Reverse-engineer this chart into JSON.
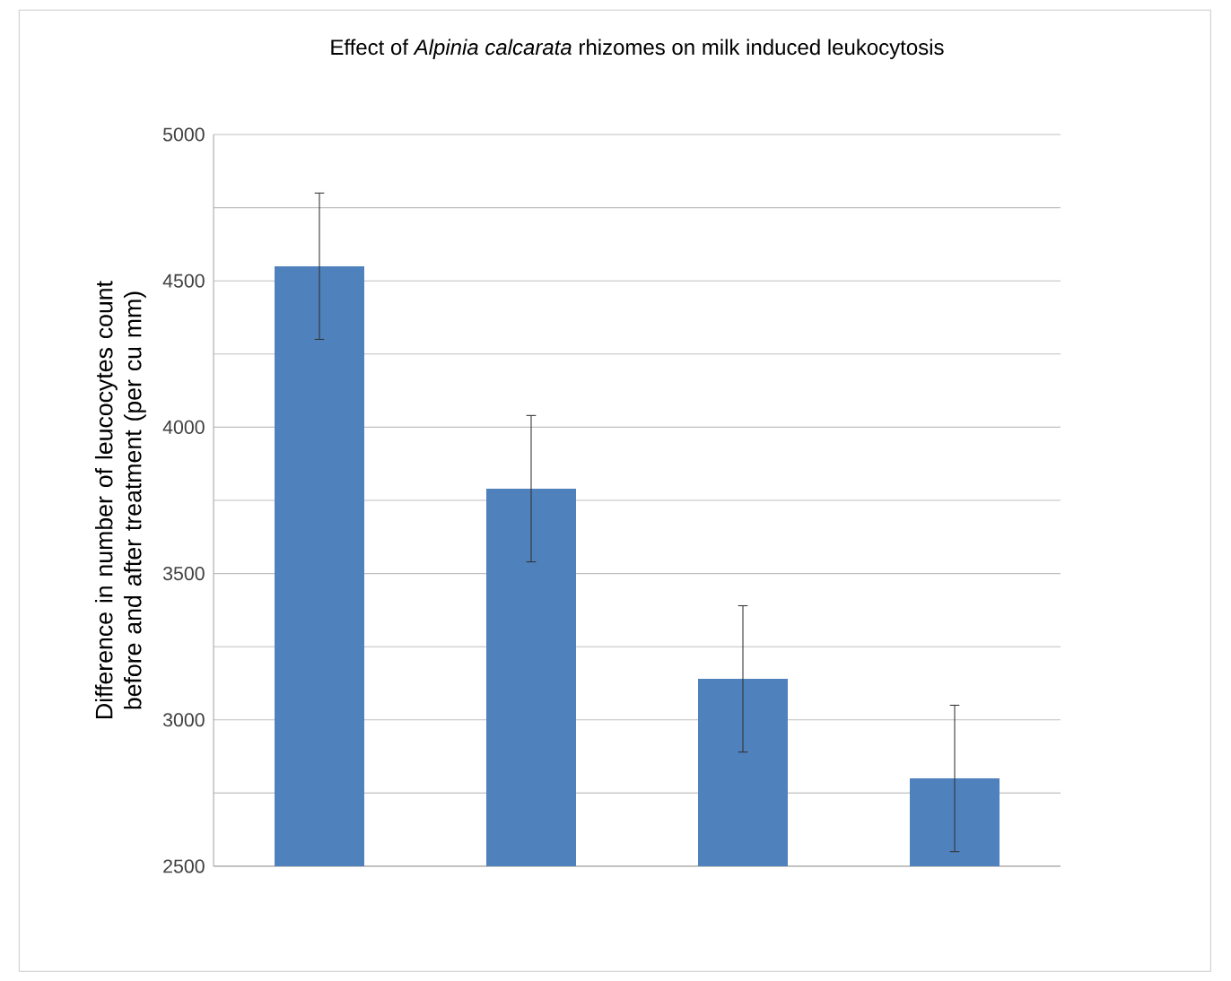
{
  "chart_data": {
    "type": "bar",
    "title": "Effect of *Alpinia calcarata* rhizomes on milk induced leukocytosis",
    "ylabel": "Difference in number of leucocytes count before and after treatment (per cu mm)",
    "categories": [
      null,
      null,
      null,
      null
    ],
    "values": [
      4550,
      3790,
      3140,
      2800
    ],
    "errors": [
      250,
      250,
      250,
      250
    ],
    "color": "#4f81bd",
    "ylim": [
      2500,
      5000
    ],
    "yticks": [
      2500,
      {
        "value": 2750,
        "label": null
      },
      3000,
      {
        "value": 3250,
        "label": null
      },
      3500,
      {
        "value": 3750,
        "label": null
      },
      4000,
      {
        "value": 4250,
        "label": null
      },
      4500,
      {
        "value": 4750,
        "label": null
      },
      5000
    ],
    "grid": "y"
  }
}
